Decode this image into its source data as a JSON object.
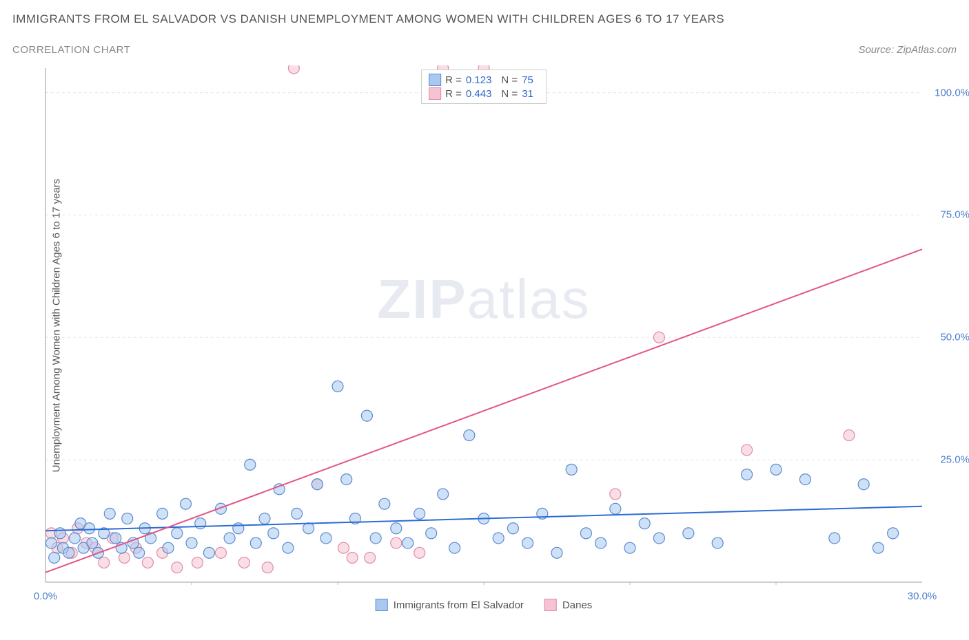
{
  "title": "IMMIGRANTS FROM EL SALVADOR VS DANISH UNEMPLOYMENT AMONG WOMEN WITH CHILDREN AGES 6 TO 17 YEARS",
  "subtitle": "CORRELATION CHART",
  "source": "Source: ZipAtlas.com",
  "watermark_zip": "ZIP",
  "watermark_atlas": "atlas",
  "chart": {
    "type": "scatter",
    "xlim": [
      0,
      30
    ],
    "ylim": [
      0,
      105
    ],
    "x_ticks_major": [
      0,
      30
    ],
    "x_ticks_minor": [
      5,
      10,
      15,
      20,
      25
    ],
    "y_ticks": [
      25,
      50,
      75,
      100
    ],
    "y_tick_labels": [
      "25.0%",
      "50.0%",
      "75.0%",
      "100.0%"
    ],
    "x_tick_labels": {
      "0": "0.0%",
      "30": "30.0%"
    },
    "ylabel": "Unemployment Among Women with Children Ages 6 to 17 years",
    "background_color": "#ffffff",
    "grid_color": "#e5e5e5",
    "axis_color": "#bbbbbb",
    "marker_radius": 8,
    "marker_opacity": 0.55,
    "line_width": 2,
    "series": [
      {
        "name": "Immigrants from El Salvador",
        "color_fill": "#a8c8f0",
        "color_stroke": "#5a8bd0",
        "line_color": "#2b6cd4",
        "r": 0.123,
        "n": 75,
        "trend": {
          "x1": 0,
          "y1": 10.5,
          "x2": 30,
          "y2": 15.5
        },
        "points": [
          [
            0.2,
            8
          ],
          [
            0.3,
            5
          ],
          [
            0.5,
            10
          ],
          [
            0.6,
            7
          ],
          [
            0.8,
            6
          ],
          [
            1.0,
            9
          ],
          [
            1.2,
            12
          ],
          [
            1.3,
            7
          ],
          [
            1.5,
            11
          ],
          [
            1.6,
            8
          ],
          [
            1.8,
            6
          ],
          [
            2.0,
            10
          ],
          [
            2.2,
            14
          ],
          [
            2.4,
            9
          ],
          [
            2.6,
            7
          ],
          [
            2.8,
            13
          ],
          [
            3.0,
            8
          ],
          [
            3.2,
            6
          ],
          [
            3.4,
            11
          ],
          [
            3.6,
            9
          ],
          [
            4.0,
            14
          ],
          [
            4.2,
            7
          ],
          [
            4.5,
            10
          ],
          [
            4.8,
            16
          ],
          [
            5.0,
            8
          ],
          [
            5.3,
            12
          ],
          [
            5.6,
            6
          ],
          [
            6.0,
            15
          ],
          [
            6.3,
            9
          ],
          [
            6.6,
            11
          ],
          [
            7.0,
            24
          ],
          [
            7.2,
            8
          ],
          [
            7.5,
            13
          ],
          [
            7.8,
            10
          ],
          [
            8.0,
            19
          ],
          [
            8.3,
            7
          ],
          [
            8.6,
            14
          ],
          [
            9.0,
            11
          ],
          [
            9.3,
            20
          ],
          [
            9.6,
            9
          ],
          [
            10.0,
            40
          ],
          [
            10.3,
            21
          ],
          [
            10.6,
            13
          ],
          [
            11.0,
            34
          ],
          [
            11.3,
            9
          ],
          [
            11.6,
            16
          ],
          [
            12.0,
            11
          ],
          [
            12.4,
            8
          ],
          [
            12.8,
            14
          ],
          [
            13.2,
            10
          ],
          [
            13.6,
            18
          ],
          [
            14.0,
            7
          ],
          [
            14.5,
            30
          ],
          [
            15.0,
            13
          ],
          [
            15.5,
            9
          ],
          [
            16.0,
            11
          ],
          [
            16.5,
            8
          ],
          [
            17.0,
            14
          ],
          [
            17.5,
            6
          ],
          [
            18.0,
            23
          ],
          [
            18.5,
            10
          ],
          [
            19.0,
            8
          ],
          [
            19.5,
            15
          ],
          [
            20.0,
            7
          ],
          [
            20.5,
            12
          ],
          [
            21.0,
            9
          ],
          [
            22.0,
            10
          ],
          [
            23.0,
            8
          ],
          [
            24.0,
            22
          ],
          [
            25.0,
            23
          ],
          [
            26.0,
            21
          ],
          [
            27.0,
            9
          ],
          [
            28.0,
            20
          ],
          [
            28.5,
            7
          ],
          [
            29.0,
            10
          ]
        ]
      },
      {
        "name": "Danes",
        "color_fill": "#f5c3d1",
        "color_stroke": "#e08aa5",
        "line_color": "#e45584",
        "r": 0.443,
        "n": 31,
        "trend": {
          "x1": 0,
          "y1": 2,
          "x2": 30,
          "y2": 68
        },
        "points": [
          [
            0.2,
            10
          ],
          [
            0.4,
            7
          ],
          [
            0.6,
            9
          ],
          [
            0.9,
            6
          ],
          [
            1.1,
            11
          ],
          [
            1.4,
            8
          ],
          [
            1.7,
            7
          ],
          [
            2.0,
            4
          ],
          [
            2.3,
            9
          ],
          [
            2.7,
            5
          ],
          [
            3.1,
            7
          ],
          [
            3.5,
            4
          ],
          [
            4.0,
            6
          ],
          [
            4.5,
            3
          ],
          [
            5.2,
            4
          ],
          [
            6.0,
            6
          ],
          [
            6.8,
            4
          ],
          [
            7.6,
            3
          ],
          [
            8.5,
            105
          ],
          [
            9.3,
            20
          ],
          [
            10.2,
            7
          ],
          [
            11.1,
            5
          ],
          [
            12.0,
            8
          ],
          [
            12.8,
            6
          ],
          [
            13.6,
            105
          ],
          [
            15.0,
            105
          ],
          [
            19.5,
            18
          ],
          [
            21.0,
            50
          ],
          [
            24.0,
            27
          ],
          [
            27.5,
            30
          ],
          [
            10.5,
            5
          ]
        ]
      }
    ],
    "legend_bottom": [
      {
        "label": "Immigrants from El Salvador",
        "fill": "#a8c8f0",
        "stroke": "#5a8bd0"
      },
      {
        "label": "Danes",
        "fill": "#f5c3d1",
        "stroke": "#e08aa5"
      }
    ]
  }
}
